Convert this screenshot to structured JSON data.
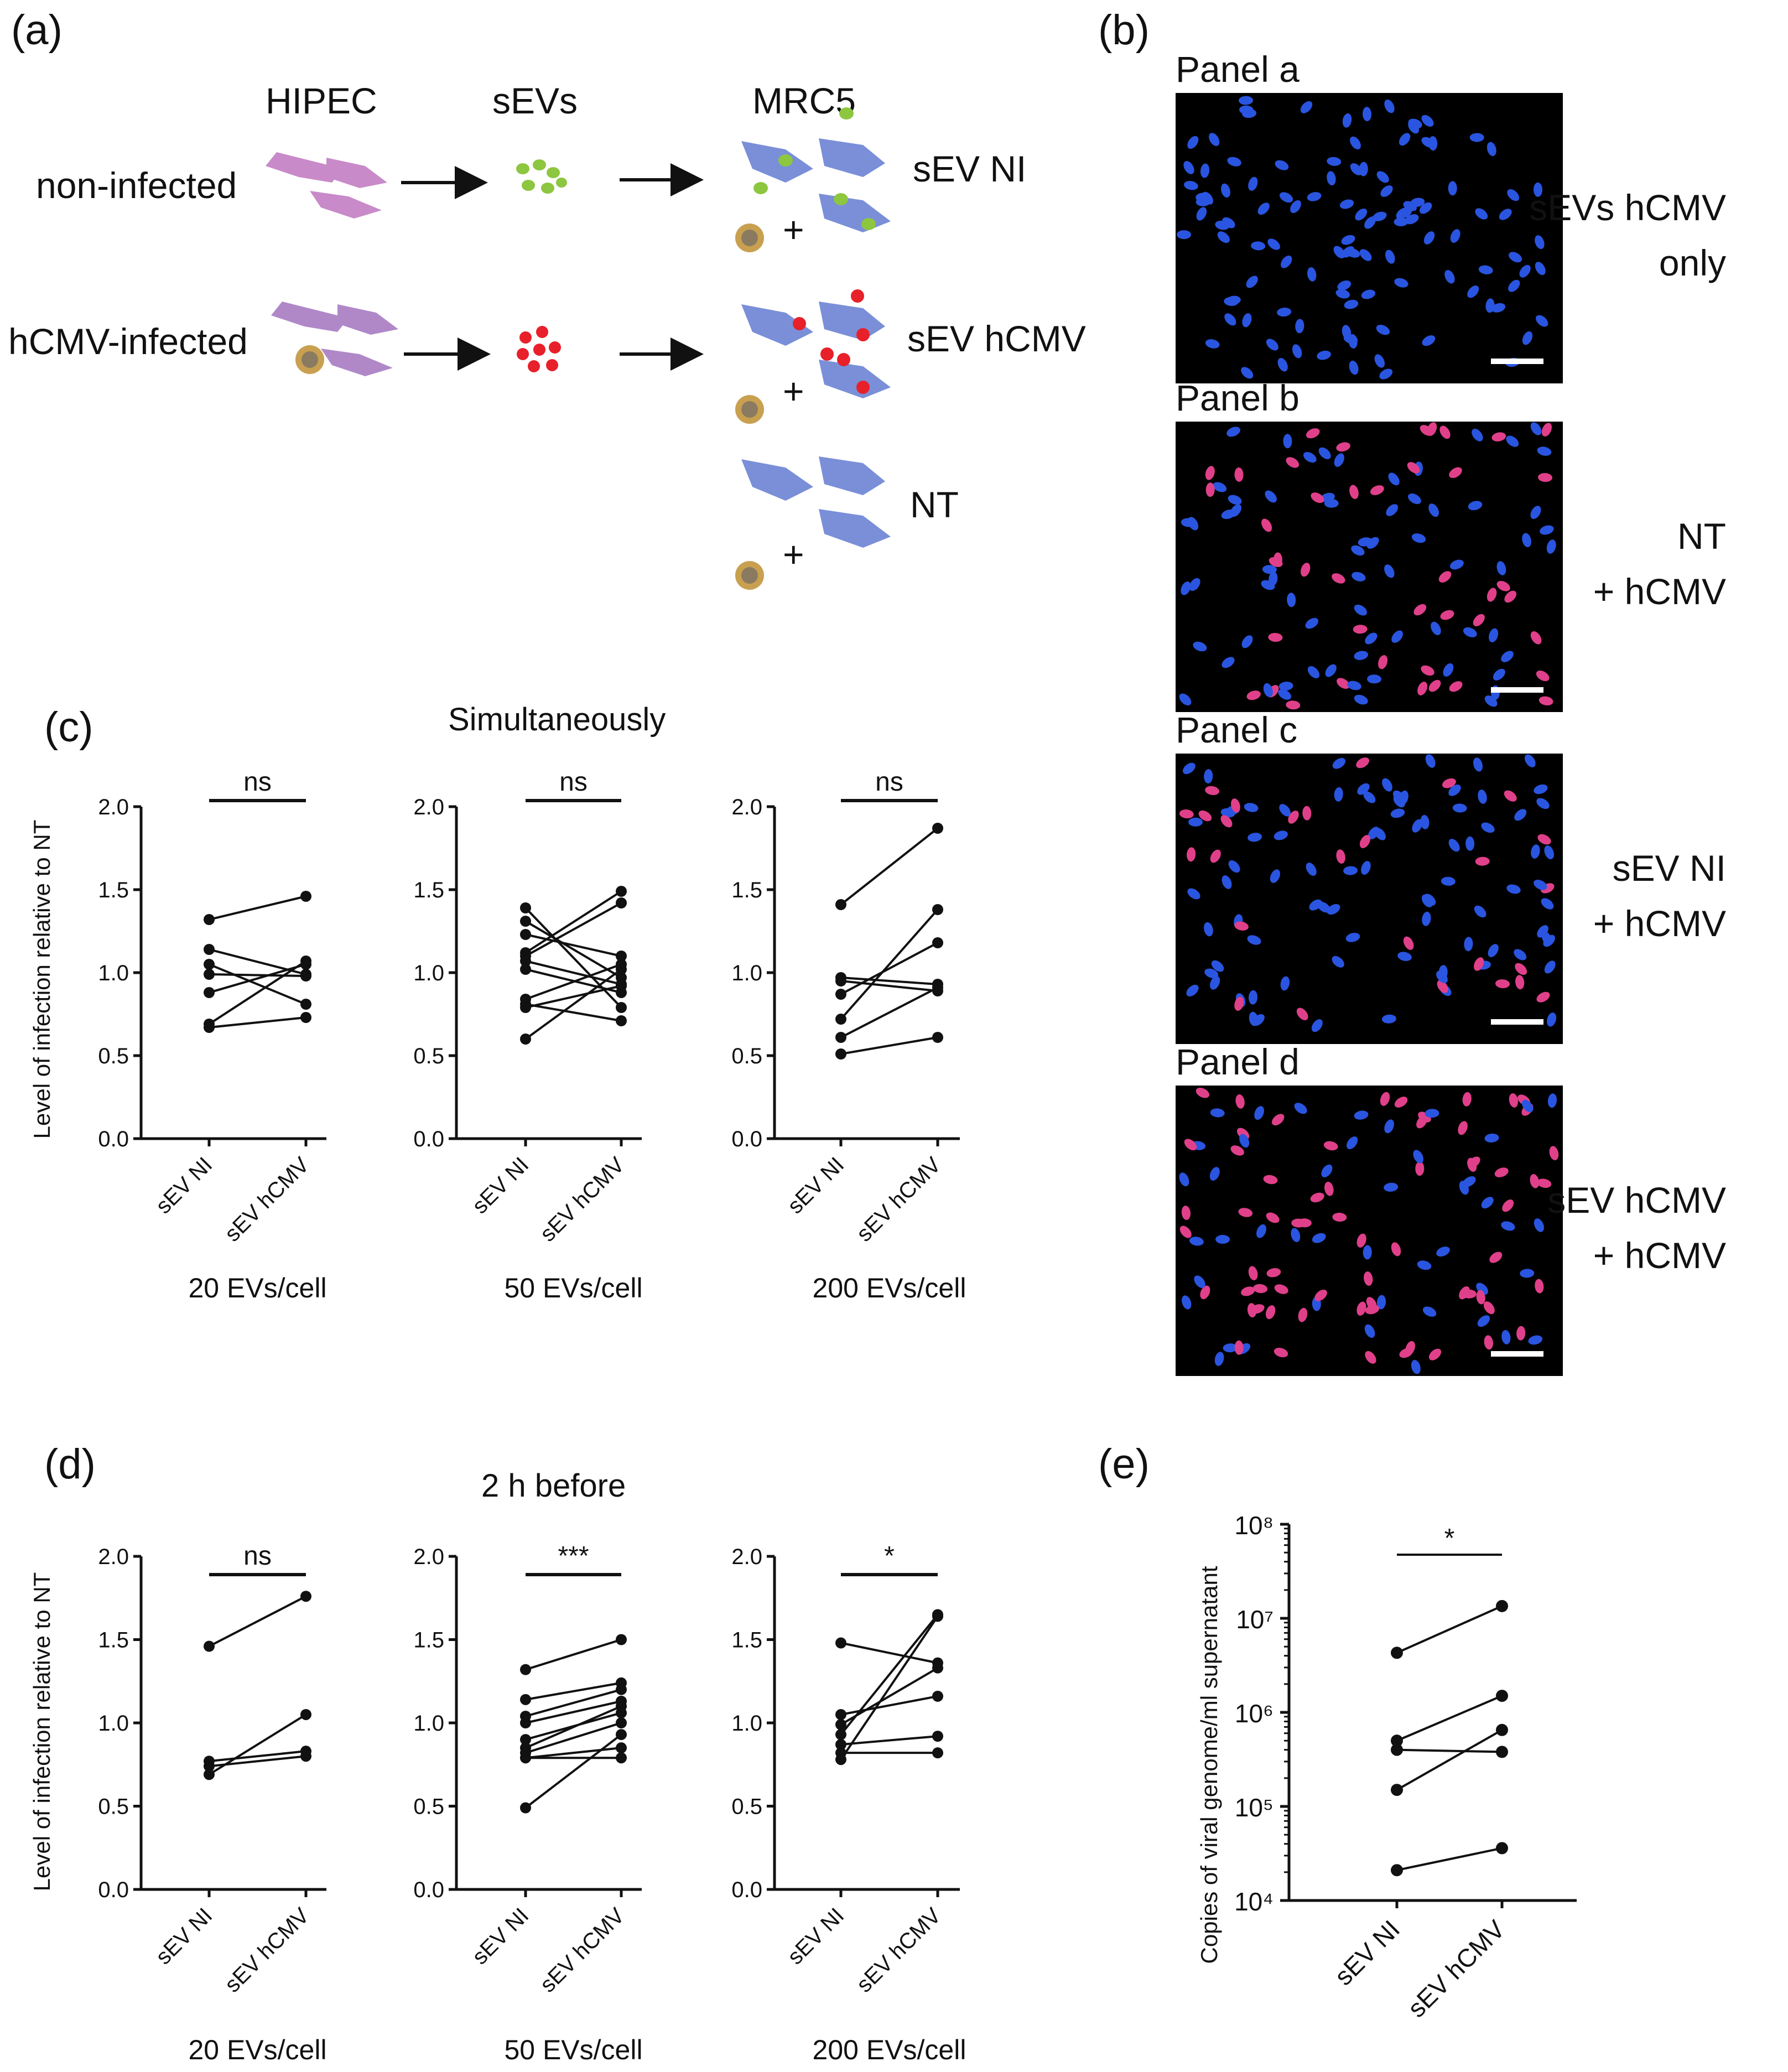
{
  "panel_labels": {
    "a": "(a)",
    "b": "(b)",
    "c": "(c)",
    "d": "(d)",
    "e": "(e)"
  },
  "schematic": {
    "col_hipec": "HIPEC",
    "col_sevs": "sEVs",
    "col_mrc5": "MRC5",
    "row_ni": "non-infected",
    "row_hcmv": "hCMV-infected",
    "out_ni": "sEV NI",
    "out_hcmv": "sEV hCMV",
    "out_nt": "NT",
    "plus": "+",
    "colors": {
      "hipec_cell": "#c88ac8",
      "hipec_infected": "#b088c8",
      "mrc5_cell": "#7a8fd8",
      "sev_ni": "#8dc63f",
      "sev_hcmv": "#e8202a",
      "virus": "#c8a050"
    }
  },
  "micrographs": {
    "panels": [
      {
        "title": "Panel a",
        "caption_line1": "sEVs hCMV",
        "caption_line2": "only",
        "infected_fraction": 0.0
      },
      {
        "title": "Panel b",
        "caption_line1": "NT",
        "caption_line2": "+ hCMV",
        "infected_fraction": 0.3
      },
      {
        "title": "Panel c",
        "caption_line1": "sEV NI",
        "caption_line2": "+ hCMV",
        "infected_fraction": 0.25
      },
      {
        "title": "Panel d",
        "caption_line1": "sEV hCMV",
        "caption_line2": "+ hCMV",
        "infected_fraction": 0.55
      }
    ],
    "colors": {
      "nucleus": "#2a55e0",
      "infected": "#e0408a",
      "background": "#000000"
    }
  },
  "shared": {
    "ylabel": "Level of infection relative to NT",
    "cat_ni": "sEV NI",
    "cat_hcmv": "sEV hCMV",
    "ticks": [
      "0.0",
      "0.5",
      "1.0",
      "1.5",
      "2.0"
    ]
  },
  "chart_data": [
    {
      "id": "c1",
      "type": "line",
      "group": "Simultaneously",
      "footer": "20 EVs/cell",
      "significance": "ns",
      "categories": [
        "sEV NI",
        "sEV hCMV"
      ],
      "ylim": [
        0,
        2
      ],
      "pairs": [
        [
          1.32,
          1.46
        ],
        [
          1.14,
          0.99
        ],
        [
          0.99,
          0.98
        ],
        [
          0.88,
          1.05
        ],
        [
          0.69,
          1.07
        ],
        [
          0.67,
          0.73
        ],
        [
          1.05,
          0.81
        ]
      ]
    },
    {
      "id": "c2",
      "type": "line",
      "group": "Simultaneously",
      "footer": "50 EVs/cell",
      "significance": "ns",
      "categories": [
        "sEV NI",
        "sEV hCMV"
      ],
      "ylim": [
        0,
        2
      ],
      "pairs": [
        [
          1.39,
          0.79
        ],
        [
          1.31,
          0.97
        ],
        [
          1.23,
          1.1
        ],
        [
          1.12,
          1.49
        ],
        [
          1.1,
          1.42
        ],
        [
          1.07,
          0.93
        ],
        [
          1.02,
          0.88
        ],
        [
          0.84,
          1.05
        ],
        [
          0.81,
          0.71
        ],
        [
          0.79,
          0.92
        ],
        [
          0.6,
          1.02
        ]
      ]
    },
    {
      "id": "c3",
      "type": "line",
      "group": "Simultaneously",
      "footer": "200 EVs/cell",
      "significance": "ns",
      "categories": [
        "sEV NI",
        "sEV hCMV"
      ],
      "ylim": [
        0,
        2
      ],
      "pairs": [
        [
          1.41,
          1.87
        ],
        [
          0.97,
          0.93
        ],
        [
          0.95,
          0.89
        ],
        [
          0.87,
          1.18
        ],
        [
          0.72,
          1.38
        ],
        [
          0.61,
          0.91
        ],
        [
          0.51,
          0.61
        ]
      ]
    },
    {
      "id": "d1",
      "type": "line",
      "group": "2 h before",
      "footer": "20 EVs/cell",
      "significance": "ns",
      "categories": [
        "sEV NI",
        "sEV hCMV"
      ],
      "ylim": [
        0,
        2
      ],
      "pairs": [
        [
          1.46,
          1.76
        ],
        [
          0.77,
          0.83
        ],
        [
          0.74,
          0.8
        ],
        [
          0.69,
          1.05
        ]
      ]
    },
    {
      "id": "d2",
      "type": "line",
      "group": "2 h before",
      "footer": "50 EVs/cell",
      "significance": "***",
      "categories": [
        "sEV NI",
        "sEV hCMV"
      ],
      "ylim": [
        0,
        2
      ],
      "pairs": [
        [
          1.32,
          1.5
        ],
        [
          1.14,
          1.24
        ],
        [
          1.04,
          1.2
        ],
        [
          1.0,
          1.13
        ],
        [
          0.9,
          1.06
        ],
        [
          0.85,
          1.1
        ],
        [
          0.82,
          1.0
        ],
        [
          0.79,
          0.79
        ],
        [
          0.79,
          0.85
        ],
        [
          0.49,
          0.93
        ]
      ]
    },
    {
      "id": "d3",
      "type": "line",
      "group": "2 h before",
      "footer": "200 EVs/cell",
      "significance": "*",
      "categories": [
        "sEV NI",
        "sEV hCMV"
      ],
      "ylim": [
        0,
        2
      ],
      "pairs": [
        [
          1.48,
          1.36
        ],
        [
          1.05,
          1.16
        ],
        [
          0.99,
          1.33
        ],
        [
          0.93,
          1.65
        ],
        [
          0.87,
          0.92
        ],
        [
          0.78,
          1.64
        ],
        [
          0.82,
          0.82
        ]
      ]
    },
    {
      "id": "e",
      "type": "line",
      "ylabel": "Copies of viral genome/ml supernatant",
      "significance": "*",
      "categories": [
        "sEV NI",
        "sEV hCMV"
      ],
      "y_scale": "log",
      "ylim": [
        10000,
        100000000
      ],
      "y_tick_labels": [
        "10⁴",
        "10⁵",
        "10⁶",
        "10⁷",
        "10⁸"
      ],
      "pairs": [
        [
          4300000,
          13500000
        ],
        [
          500000,
          1500000
        ],
        [
          400000,
          380000
        ],
        [
          150000,
          650000
        ],
        [
          21000,
          36000
        ]
      ]
    }
  ]
}
